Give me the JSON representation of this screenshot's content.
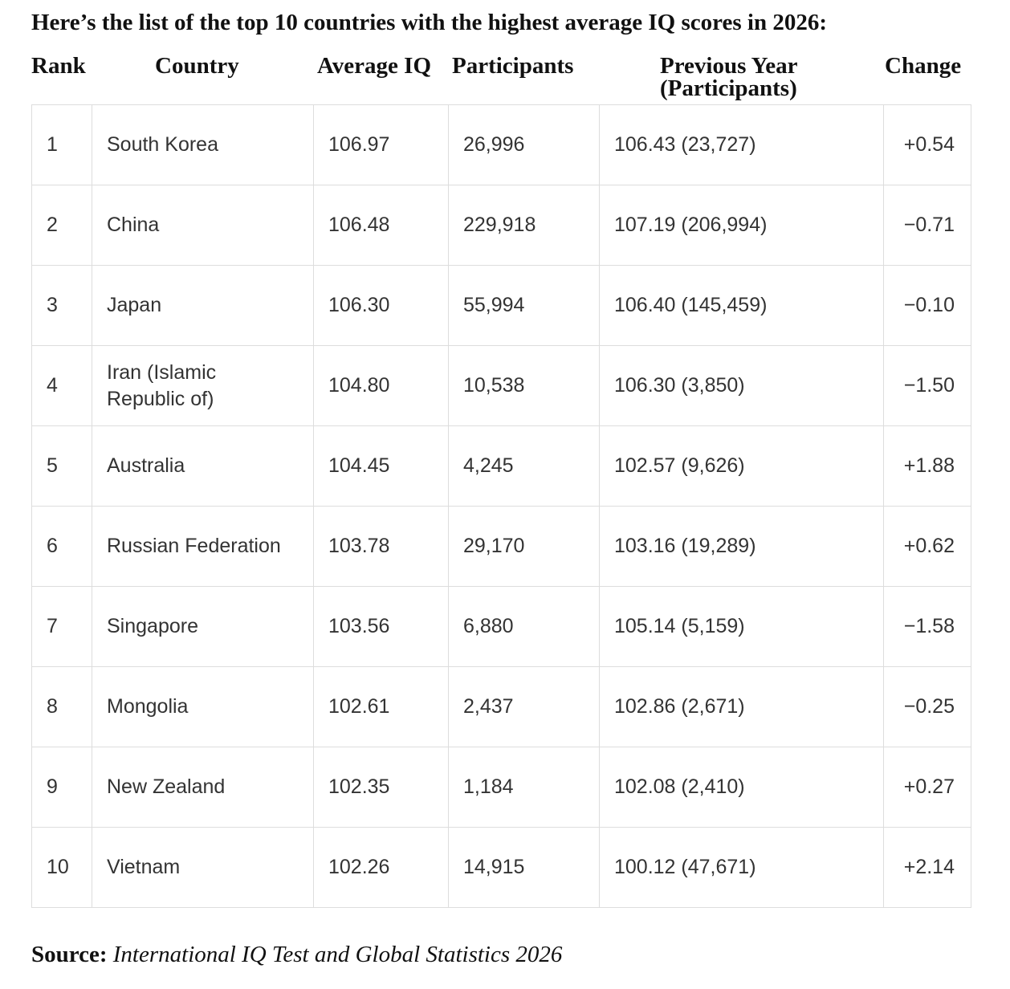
{
  "title": "Here’s the list of the top 10 countries with the highest average IQ scores in 2026:",
  "table": {
    "headers": [
      "Rank",
      "Country",
      "Average IQ",
      "Participants",
      "Previous Year (Participants)",
      "Change"
    ],
    "rows": [
      [
        "1",
        "South Korea",
        "106.97",
        "26,996",
        "106.43 (23,727)",
        "+0.54"
      ],
      [
        "2",
        "China",
        "106.48",
        "229,918",
        "107.19 (206,994)",
        "−0.71"
      ],
      [
        "3",
        "Japan",
        "106.30",
        "55,994",
        "106.40 (145,459)",
        "−0.10"
      ],
      [
        "4",
        "Iran (Islamic Republic of)",
        "104.80",
        "10,538",
        "106.30 (3,850)",
        "−1.50"
      ],
      [
        "5",
        "Australia",
        "104.45",
        "4,245",
        "102.57 (9,626)",
        "+1.88"
      ],
      [
        "6",
        "Russian Federation",
        "103.78",
        "29,170",
        "103.16 (19,289)",
        "+0.62"
      ],
      [
        "7",
        "Singapore",
        "103.56",
        "6,880",
        "105.14 (5,159)",
        "−1.58"
      ],
      [
        "8",
        "Mongolia",
        "102.61",
        "2,437",
        "102.86 (2,671)",
        "−0.25"
      ],
      [
        "9",
        "New Zealand",
        "102.35",
        "1,184",
        "102.08 (2,410)",
        "+0.27"
      ],
      [
        "10",
        "Vietnam",
        "102.26",
        "14,915",
        "100.12 (47,671)",
        "+2.14"
      ]
    ]
  },
  "source": {
    "label": "Source:",
    "text": "International IQ Test and Global Statistics 2026"
  }
}
